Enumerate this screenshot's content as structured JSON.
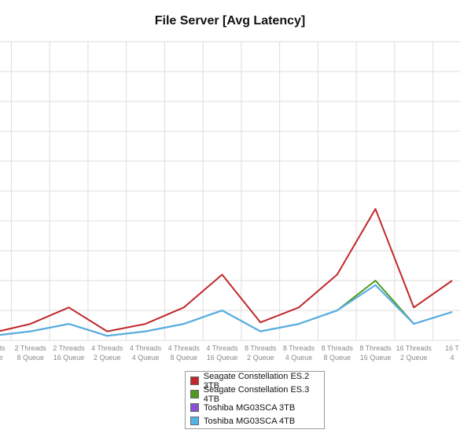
{
  "chart_data": {
    "type": "line",
    "title": "File Server [Avg Latency]",
    "categories": [
      [
        "Threads",
        "Queue"
      ],
      [
        "2 Threads",
        "8 Queue"
      ],
      [
        "2 Threads",
        "16 Queue"
      ],
      [
        "4 Threads",
        "2 Queue"
      ],
      [
        "4 Threads",
        "4 Queue"
      ],
      [
        "4 Threads",
        "8 Queue"
      ],
      [
        "4 Threads",
        "16 Queue"
      ],
      [
        "8 Threads",
        "2 Queue"
      ],
      [
        "8 Threads",
        "4 Queue"
      ],
      [
        "8 Threads",
        "8 Queue"
      ],
      [
        "8 Threads",
        "16 Queue"
      ],
      [
        "16 Threads",
        "2 Queue"
      ],
      [
        "16 T",
        "4 "
      ]
    ],
    "ylim": [
      0,
      10
    ],
    "grid": true,
    "legend_position": "bottom",
    "series": [
      {
        "name": "Seagate Constellation ES.2 3TB",
        "color": "#c0282b",
        "values": [
          0.25,
          0.55,
          1.1,
          0.3,
          0.55,
          1.1,
          2.2,
          0.6,
          1.1,
          2.2,
          4.4,
          1.1,
          2.0
        ]
      },
      {
        "name": "Seagate Constellation ES.3 4TB",
        "color": "#4c9a1e",
        "values": [
          0.15,
          0.3,
          0.55,
          0.15,
          0.3,
          0.55,
          1.0,
          0.3,
          0.55,
          1.0,
          2.0,
          0.55,
          0.95
        ]
      },
      {
        "name": "Toshiba MG03SCA 3TB",
        "color": "#8b4fd6",
        "values": [
          0.15,
          0.3,
          0.55,
          0.15,
          0.3,
          0.55,
          1.0,
          0.3,
          0.55,
          1.0,
          1.85,
          0.55,
          0.95
        ]
      },
      {
        "name": "Toshiba MG03SCA 4TB",
        "color": "#54b4e6",
        "values": [
          0.15,
          0.3,
          0.55,
          0.15,
          0.3,
          0.55,
          1.0,
          0.3,
          0.55,
          1.0,
          1.85,
          0.55,
          0.95
        ]
      }
    ]
  }
}
